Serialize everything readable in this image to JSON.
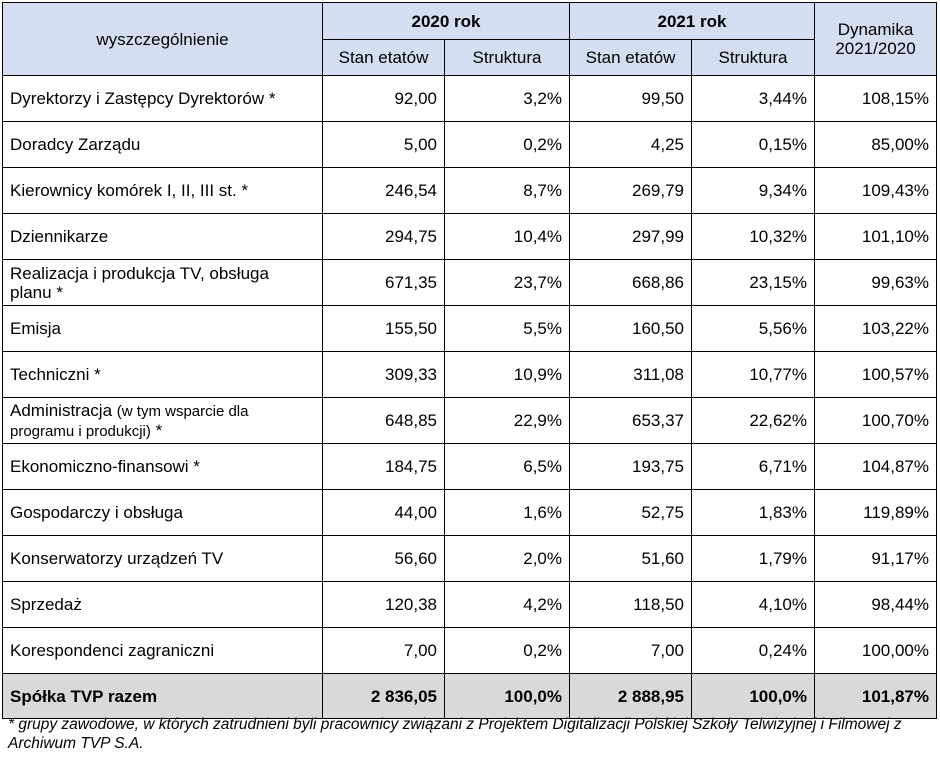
{
  "header": {
    "label_col": "wyszczególnienie",
    "year_2020": "2020 rok",
    "year_2021": "2021 rok",
    "dynamics_line1": "Dynamika",
    "dynamics_line2": "2021/2020",
    "sub_stan": "Stan etatów",
    "sub_struktura": "Struktura"
  },
  "rows": [
    {
      "label": "Dyrektorzy i Zastępcy Dyrektorów *",
      "sub": "",
      "tail": "",
      "s2020": "92,00",
      "p2020": "3,2%",
      "s2021": "99,50",
      "p2021": "3,44%",
      "dyn": "108,15%"
    },
    {
      "label": "Doradcy Zarządu",
      "sub": "",
      "tail": "",
      "s2020": "5,00",
      "p2020": "0,2%",
      "s2021": "4,25",
      "p2021": "0,15%",
      "dyn": "85,00%"
    },
    {
      "label": "Kierownicy komórek I, II, III st. *",
      "sub": "",
      "tail": "",
      "s2020": "246,54",
      "p2020": "8,7%",
      "s2021": "269,79",
      "p2021": "9,34%",
      "dyn": "109,43%"
    },
    {
      "label": "Dziennikarze",
      "sub": "",
      "tail": "",
      "s2020": "294,75",
      "p2020": "10,4%",
      "s2021": "297,99",
      "p2021": "10,32%",
      "dyn": "101,10%"
    },
    {
      "label": "Realizacja i produkcja TV, obsługa planu *",
      "sub": "",
      "tail": "",
      "s2020": "671,35",
      "p2020": "23,7%",
      "s2021": "668,86",
      "p2021": "23,15%",
      "dyn": "99,63%"
    },
    {
      "label": "Emisja",
      "sub": "",
      "tail": "",
      "s2020": "155,50",
      "p2020": "5,5%",
      "s2021": "160,50",
      "p2021": "5,56%",
      "dyn": "103,22%"
    },
    {
      "label": "Techniczni *",
      "sub": "",
      "tail": "",
      "s2020": "309,33",
      "p2020": "10,9%",
      "s2021": "311,08",
      "p2021": "10,77%",
      "dyn": "100,57%"
    },
    {
      "label": "Administracja",
      "sub": "(w tym wsparcie dla programu i produkcji)",
      "tail": " *",
      "s2020": "648,85",
      "p2020": "22,9%",
      "s2021": "653,37",
      "p2021": "22,62%",
      "dyn": "100,70%"
    },
    {
      "label": "Ekonomiczno-finansowi *",
      "sub": "",
      "tail": "",
      "s2020": "184,75",
      "p2020": "6,5%",
      "s2021": "193,75",
      "p2021": "6,71%",
      "dyn": "104,87%"
    },
    {
      "label": "Gospodarczy i obsługa",
      "sub": "",
      "tail": "",
      "s2020": "44,00",
      "p2020": "1,6%",
      "s2021": "52,75",
      "p2021": "1,83%",
      "dyn": "119,89%"
    },
    {
      "label": "Konserwatorzy urządzeń TV",
      "sub": "",
      "tail": "",
      "s2020": "56,60",
      "p2020": "2,0%",
      "s2021": "51,60",
      "p2021": "1,79%",
      "dyn": "91,17%"
    },
    {
      "label": "Sprzedaż",
      "sub": "",
      "tail": "",
      "s2020": "120,38",
      "p2020": "4,2%",
      "s2021": "118,50",
      "p2021": "4,10%",
      "dyn": "98,44%"
    },
    {
      "label": "Korespondenci zagraniczni",
      "sub": "",
      "tail": "",
      "s2020": "7,00",
      "p2020": "0,2%",
      "s2021": "7,00",
      "p2021": "0,24%",
      "dyn": "100,00%"
    }
  ],
  "total": {
    "label": "Spółka TVP razem",
    "s2020": "2 836,05",
    "p2020": "100,0%",
    "s2021": "2 888,95",
    "p2021": "100,0%",
    "dyn": "101,87%"
  },
  "footnote": "* grupy zawodowe, w których zatrudnieni byli pracownicy związani z Projektem Digitalizacji Polskiej Szkoły Telwizyjnej i Filmowej z Archiwum TVP S.A."
}
